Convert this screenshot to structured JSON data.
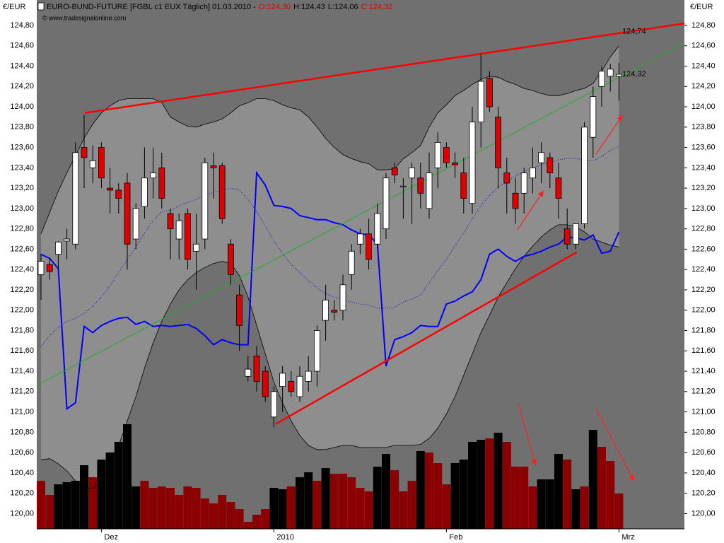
{
  "chart_data": {
    "type": "candlestick",
    "title": "EURO-BUND-FUTURE [FGBL c1 EUX  Täglich] 01.03.2010 -",
    "header_quotes": [
      {
        "text": "O:124,30",
        "color": "#e00000"
      },
      {
        "text": "H:124,43",
        "color": "#000000"
      },
      {
        "text": "L:124,06",
        "color": "#000000"
      },
      {
        "text": "C:124,32",
        "color": "#e00000"
      }
    ],
    "copyright": "© www.tradesignalonline.com",
    "y_unit": "€/EUR",
    "categories": [
      null,
      null,
      null,
      null,
      null,
      null,
      null,
      "Dez",
      null,
      null,
      null,
      null,
      null,
      null,
      null,
      null,
      null,
      null,
      null,
      null,
      null,
      null,
      null,
      null,
      null,
      null,
      null,
      "2010",
      null,
      null,
      null,
      null,
      null,
      null,
      null,
      null,
      null,
      null,
      null,
      null,
      null,
      null,
      null,
      null,
      null,
      null,
      null,
      "Feb",
      null,
      null,
      null,
      null,
      null,
      null,
      null,
      null,
      null,
      null,
      null,
      null,
      null,
      null,
      null,
      null,
      null,
      null,
      null,
      "Mrz"
    ],
    "open": [
      122.35,
      122.45,
      122.55,
      122.68,
      122.65,
      123.6,
      123.4,
      123.6,
      123.2,
      123.18,
      123.25,
      122.7,
      123.02,
      123.3,
      123.4,
      122.95,
      122.7,
      122.95,
      122.58,
      122.7,
      123.42,
      123.42,
      122.65,
      122.15,
      121.35,
      121.55,
      121.4,
      120.95,
      121.25,
      121.3,
      121.15,
      121.3,
      121.4,
      121.9,
      122.0,
      122.0,
      122.35,
      122.65,
      122.75,
      122.65,
      122.8,
      123.4,
      123.22,
      123.3,
      123.3,
      123.0,
      123.4,
      123.6,
      123.45,
      123.35,
      123.05,
      123.85,
      124.28,
      123.9,
      123.35,
      123.15,
      123.15,
      123.3,
      123.45,
      123.5,
      123.3,
      122.8,
      122.65,
      122.85,
      123.7,
      124.2,
      124.3,
      124.3
    ],
    "high": [
      122.55,
      122.52,
      122.68,
      122.8,
      123.65,
      123.92,
      123.62,
      123.65,
      123.4,
      123.25,
      123.35,
      123.05,
      123.6,
      123.6,
      123.55,
      123.0,
      122.95,
      123.0,
      122.95,
      123.5,
      123.55,
      123.45,
      122.7,
      122.25,
      121.55,
      121.65,
      121.45,
      121.25,
      121.45,
      121.4,
      121.45,
      121.55,
      121.85,
      122.25,
      122.1,
      122.35,
      122.65,
      122.8,
      122.9,
      123.05,
      123.35,
      123.45,
      123.3,
      123.45,
      123.45,
      123.55,
      123.75,
      123.65,
      123.55,
      123.5,
      124.0,
      124.52,
      124.35,
      124.0,
      123.5,
      123.3,
      123.4,
      123.6,
      123.65,
      123.55,
      123.45,
      123.0,
      122.85,
      123.85,
      124.2,
      124.4,
      124.42,
      124.43
    ],
    "low": [
      122.1,
      122.3,
      122.4,
      122.5,
      122.6,
      123.2,
      123.25,
      123.2,
      122.95,
      122.95,
      122.4,
      122.6,
      122.9,
      123.1,
      123.0,
      122.5,
      122.5,
      122.4,
      122.2,
      122.6,
      123.1,
      122.85,
      122.25,
      121.6,
      121.3,
      121.2,
      121.1,
      120.85,
      121.0,
      121.15,
      121.1,
      121.2,
      121.25,
      121.7,
      121.9,
      121.9,
      122.2,
      122.55,
      122.4,
      122.6,
      122.7,
      123.25,
      122.9,
      122.85,
      123.0,
      122.9,
      123.2,
      123.4,
      123.3,
      122.95,
      122.95,
      123.6,
      123.95,
      123.2,
      122.95,
      122.85,
      122.95,
      123.15,
      123.25,
      123.2,
      122.9,
      122.6,
      122.6,
      122.8,
      123.5,
      124.0,
      124.15,
      124.06
    ],
    "close": [
      122.48,
      122.38,
      122.67,
      122.7,
      123.55,
      123.5,
      123.47,
      123.3,
      123.18,
      123.1,
      122.65,
      123.0,
      123.3,
      123.35,
      123.1,
      122.8,
      122.88,
      122.5,
      122.65,
      123.45,
      123.4,
      122.9,
      122.35,
      121.85,
      121.42,
      121.3,
      121.15,
      121.2,
      121.38,
      121.2,
      121.35,
      121.4,
      121.8,
      122.1,
      121.98,
      122.25,
      122.58,
      122.75,
      122.5,
      122.95,
      123.3,
      123.33,
      123.22,
      123.4,
      123.15,
      123.35,
      123.65,
      123.45,
      123.43,
      123.1,
      123.85,
      124.25,
      124.0,
      123.4,
      123.25,
      123.0,
      123.35,
      123.4,
      123.55,
      123.35,
      123.1,
      122.65,
      122.85,
      123.8,
      124.1,
      124.35,
      124.37,
      124.32
    ],
    "up_color": "#ffffff",
    "down_color": "#e00000",
    "bands": {
      "fill": "#8e8e8e",
      "color": "#000000",
      "upper": [
        122.75,
        122.96,
        123.17,
        123.35,
        123.52,
        123.69,
        123.83,
        123.94,
        124.01,
        124.06,
        124.08,
        124.08,
        124.08,
        124.08,
        124.04,
        123.9,
        123.85,
        123.81,
        123.8,
        123.83,
        123.85,
        123.88,
        123.94,
        124.01,
        124.04,
        124.08,
        124.08,
        124.06,
        124.02,
        123.99,
        123.97,
        123.9,
        123.8,
        123.69,
        123.6,
        123.53,
        123.49,
        123.46,
        123.44,
        123.38,
        123.38,
        123.39,
        123.49,
        123.55,
        123.62,
        123.8,
        123.94,
        124.02,
        124.11,
        124.16,
        124.22,
        124.27,
        124.3,
        124.29,
        124.25,
        124.22,
        124.18,
        124.16,
        124.13,
        124.11,
        124.11,
        124.13,
        124.16,
        124.18,
        124.23,
        124.35,
        124.49,
        124.6
      ],
      "lower": [
        120.53,
        120.54,
        120.49,
        120.42,
        120.32,
        120.25,
        120.25,
        120.32,
        120.46,
        120.67,
        120.91,
        121.15,
        121.43,
        121.68,
        121.89,
        122.06,
        122.2,
        122.3,
        122.37,
        122.42,
        122.46,
        122.48,
        122.46,
        122.34,
        122.13,
        121.85,
        121.57,
        121.29,
        121.09,
        120.91,
        120.77,
        120.67,
        120.63,
        120.63,
        120.65,
        120.67,
        120.67,
        120.65,
        120.65,
        120.65,
        120.65,
        120.67,
        120.67,
        120.67,
        120.68,
        120.74,
        120.84,
        120.98,
        121.15,
        121.36,
        121.57,
        121.78,
        121.95,
        122.13,
        122.27,
        122.41,
        122.53,
        122.63,
        122.72,
        122.79,
        122.84,
        122.84,
        122.82,
        122.77,
        122.7,
        122.67,
        122.64,
        122.62
      ]
    },
    "middle": {
      "color": "#1010c0",
      "values": [
        121.64,
        121.75,
        121.83,
        121.89,
        121.92,
        121.97,
        122.04,
        122.13,
        122.24,
        122.37,
        122.5,
        122.62,
        122.76,
        122.88,
        122.97,
        122.98,
        123.03,
        123.06,
        123.09,
        123.13,
        123.16,
        123.18,
        123.2,
        123.18,
        123.09,
        122.97,
        122.83,
        122.68,
        122.56,
        122.45,
        122.37,
        122.29,
        122.22,
        122.16,
        122.13,
        122.1,
        122.08,
        122.06,
        122.05,
        122.02,
        122.02,
        122.03,
        122.08,
        122.11,
        122.15,
        122.27,
        122.39,
        122.5,
        122.63,
        122.76,
        122.9,
        123.03,
        123.13,
        123.21,
        123.26,
        123.32,
        123.36,
        123.4,
        123.43,
        123.45,
        123.48,
        123.49,
        123.49,
        123.48,
        123.47,
        123.51,
        123.57,
        123.61
      ]
    },
    "indicator": {
      "color": "#0000ff",
      "values": [
        122.55,
        122.51,
        122.41,
        121.03,
        121.09,
        121.84,
        121.78,
        121.85,
        121.89,
        121.92,
        121.93,
        121.86,
        121.89,
        121.84,
        121.85,
        121.84,
        121.85,
        121.86,
        121.82,
        121.75,
        121.66,
        121.71,
        121.68,
        121.66,
        121.66,
        123.35,
        123.23,
        123.03,
        123.02,
        123.0,
        122.93,
        122.91,
        122.89,
        122.89,
        122.86,
        122.84,
        122.79,
        122.75,
        122.74,
        122.65,
        121.45,
        121.71,
        121.74,
        121.78,
        121.85,
        121.84,
        121.84,
        122.06,
        122.09,
        122.14,
        122.18,
        122.3,
        122.55,
        122.6,
        122.53,
        122.48,
        122.53,
        122.55,
        122.58,
        122.62,
        122.65,
        122.72,
        122.71,
        122.69,
        122.74,
        122.56,
        122.58,
        122.77
      ]
    },
    "volume": {
      "lim": [
        0,
        150
      ],
      "values": [
        68,
        48,
        63,
        66,
        68,
        90,
        73,
        98,
        108,
        123,
        148,
        60,
        68,
        58,
        60,
        58,
        48,
        60,
        58,
        43,
        36,
        48,
        38,
        28,
        10,
        20,
        28,
        58,
        56,
        60,
        73,
        80,
        68,
        86,
        78,
        78,
        73,
        58,
        53,
        88,
        106,
        83,
        53,
        68,
        110,
        108,
        93,
        63,
        93,
        98,
        123,
        126,
        128,
        136,
        123,
        88,
        88,
        60,
        70,
        70,
        106,
        98,
        56,
        60,
        140,
        116,
        96,
        50
      ],
      "colors": [
        "#8b0000",
        "#8b0000",
        "#000000",
        "#000000",
        "#000000",
        "#000000",
        "#8b0000",
        "#000000",
        "#000000",
        "#000000",
        "#000000",
        "#000000",
        "#8b0000",
        "#8b0000",
        "#8b0000",
        "#8b0000",
        "#8b0000",
        "#8b0000",
        "#8b0000",
        "#8b0000",
        "#8b0000",
        "#8b0000",
        "#8b0000",
        "#8b0000",
        "#8b0000",
        "#8b0000",
        "#8b0000",
        "#000000",
        "#000000",
        "#8b0000",
        "#000000",
        "#000000",
        "#8b0000",
        "#000000",
        "#8b0000",
        "#8b0000",
        "#8b0000",
        "#8b0000",
        "#8b0000",
        "#000000",
        "#000000",
        "#8b0000",
        "#8b0000",
        "#8b0000",
        "#000000",
        "#8b0000",
        "#8b0000",
        "#8b0000",
        "#000000",
        "#000000",
        "#000000",
        "#000000",
        "#8b0000",
        "#000000",
        "#8b0000",
        "#8b0000",
        "#8b0000",
        "#8b0000",
        "#000000",
        "#000000",
        "#000000",
        "#8b0000",
        "#000000",
        "#8b0000",
        "#000000",
        "#8b0000",
        "#8b0000",
        "#8b0000"
      ]
    },
    "trendlines": [
      {
        "color": "#ff0000",
        "width": 2.5,
        "x": [
          5.08,
          74.6
        ],
        "values": [
          123.94,
          124.82
        ]
      },
      {
        "color": "#ff0000",
        "width": 2.5,
        "x": [
          27.2,
          62.1
        ],
        "values": [
          120.88,
          122.57
        ]
      },
      {
        "color": "#20b020",
        "width": 1,
        "x": [
          -0.5,
          74.6
        ],
        "values": [
          121.26,
          124.63
        ]
      }
    ],
    "price_labels": [
      {
        "value": 124.74,
        "label": "124,74",
        "color": "#ff2020"
      },
      {
        "value": 124.32,
        "label": "124,32",
        "color": "#20c020"
      }
    ],
    "ylim": [
      119.85,
      125.05
    ],
    "yticks": [
      {
        "value": 120.0,
        "label": "120,00"
      },
      {
        "value": 120.2,
        "label": "120,20"
      },
      {
        "value": 120.4,
        "label": "120,40"
      },
      {
        "value": 120.6,
        "label": "120,60"
      },
      {
        "value": 120.8,
        "label": "120,80"
      },
      {
        "value": 121.0,
        "label": "121,00"
      },
      {
        "value": 121.2,
        "label": "121,20"
      },
      {
        "value": 121.4,
        "label": "121,40"
      },
      {
        "value": 121.6,
        "label": "121,60"
      },
      {
        "value": 121.8,
        "label": "121,80"
      },
      {
        "value": 122.0,
        "label": "122,00"
      },
      {
        "value": 122.2,
        "label": "122,20"
      },
      {
        "value": 122.4,
        "label": "122,40"
      },
      {
        "value": 122.6,
        "label": "122,60"
      },
      {
        "value": 122.8,
        "label": "122,80"
      },
      {
        "value": 123.0,
        "label": "123,00"
      },
      {
        "value": 123.2,
        "label": "123,20"
      },
      {
        "value": 123.4,
        "label": "123,40"
      },
      {
        "value": 123.6,
        "label": "123,60"
      },
      {
        "value": 123.8,
        "label": "123,80"
      },
      {
        "value": 124.0,
        "label": "124,00"
      },
      {
        "value": 124.2,
        "label": "124,20"
      },
      {
        "value": 124.4,
        "label": "124,40"
      },
      {
        "value": 124.6,
        "label": "124,60"
      },
      {
        "value": 124.8,
        "label": "124,80"
      }
    ],
    "plot_background": "#707070"
  }
}
